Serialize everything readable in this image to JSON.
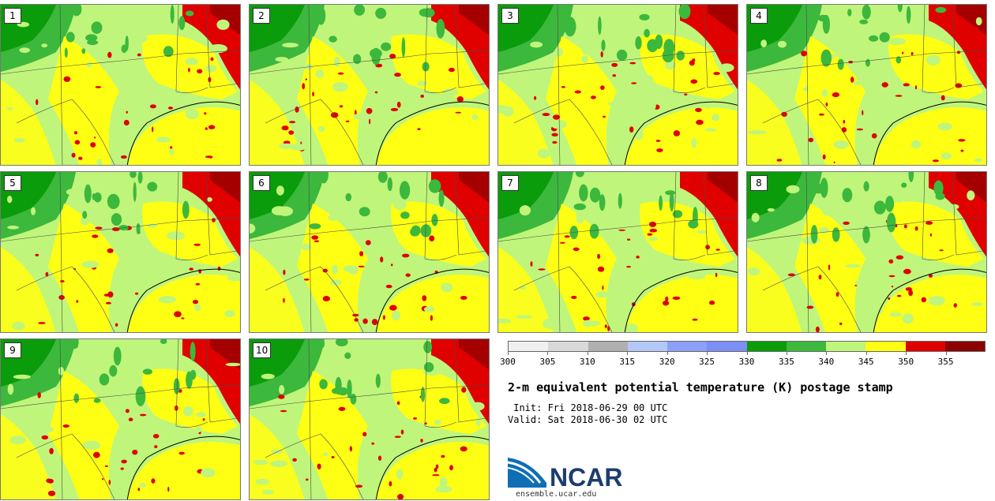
{
  "panels": [
    {
      "label": "1",
      "map_icon": "weather-map-ensemble-member-1"
    },
    {
      "label": "2",
      "map_icon": "weather-map-ensemble-member-2"
    },
    {
      "label": "3",
      "map_icon": "weather-map-ensemble-member-3"
    },
    {
      "label": "4",
      "map_icon": "weather-map-ensemble-member-4"
    },
    {
      "label": "5",
      "map_icon": "weather-map-ensemble-member-5"
    },
    {
      "label": "6",
      "map_icon": "weather-map-ensemble-member-6"
    },
    {
      "label": "7",
      "map_icon": "weather-map-ensemble-member-7"
    },
    {
      "label": "8",
      "map_icon": "weather-map-ensemble-member-8"
    },
    {
      "label": "9",
      "map_icon": "weather-map-ensemble-member-9"
    },
    {
      "label": "10",
      "map_icon": "weather-map-ensemble-member-10"
    }
  ],
  "colorbar": {
    "colors": [
      "#f0f0f0",
      "#d9d9d9",
      "#b0b0b0",
      "#b4c8f8",
      "#8ca0f8",
      "#7b8ff5",
      "#0a9c0a",
      "#3cb83c",
      "#bff57a",
      "#ffff14",
      "#e00000",
      "#8b0000"
    ],
    "ticks": [
      "300",
      "305",
      "310",
      "315",
      "320",
      "325",
      "330",
      "335",
      "340",
      "345",
      "350",
      "355"
    ]
  },
  "title": "2-m equivalent potential temperature (K) postage stamp",
  "init": " Init: Fri 2018-06-29 00 UTC",
  "valid": "Valid: Sat 2018-06-30 02 UTC",
  "logo": {
    "text": "NCAR",
    "icon": "ncar-logo-icon",
    "color": "#1c3d6e"
  },
  "site": "ensemble.ucar.edu"
}
